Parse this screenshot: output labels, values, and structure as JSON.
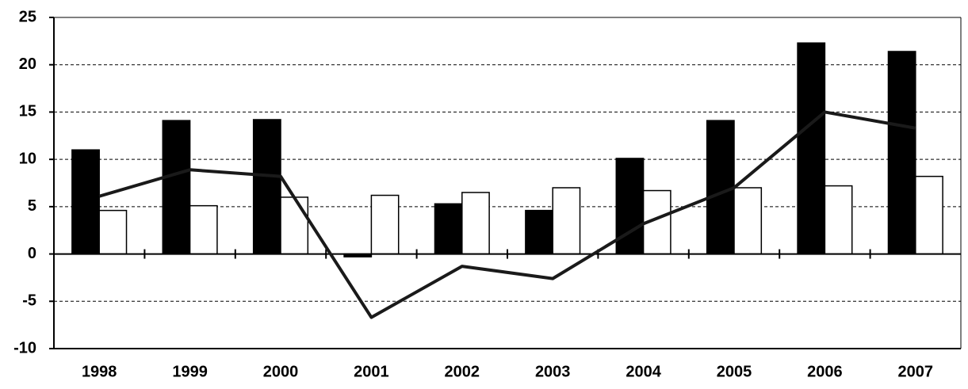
{
  "chart_data": {
    "type": "bar_line",
    "categories": [
      "1998",
      "1999",
      "2000",
      "2001",
      "2002",
      "2003",
      "2004",
      "2005",
      "2006",
      "2007"
    ],
    "series": [
      {
        "type": "bar",
        "color": "#000000",
        "values": [
          11,
          14.1,
          14.2,
          -0.3,
          5.3,
          4.6,
          10.1,
          14.1,
          22.3,
          21.4
        ]
      },
      {
        "type": "bar",
        "color": "#ffffff",
        "values": [
          4.6,
          5.1,
          6.0,
          6.2,
          6.5,
          7.0,
          6.7,
          7.0,
          7.2,
          8.2
        ]
      },
      {
        "type": "line",
        "color": "#1a1a1a",
        "values": [
          6.1,
          8.9,
          8.2,
          -6.7,
          -1.3,
          -2.6,
          3.2,
          7.0,
          15.0,
          13.3
        ]
      }
    ],
    "ylim": [
      -10,
      25
    ],
    "yticks": [
      -10,
      -5,
      0,
      5,
      10,
      15,
      20,
      25
    ],
    "grid": true
  }
}
